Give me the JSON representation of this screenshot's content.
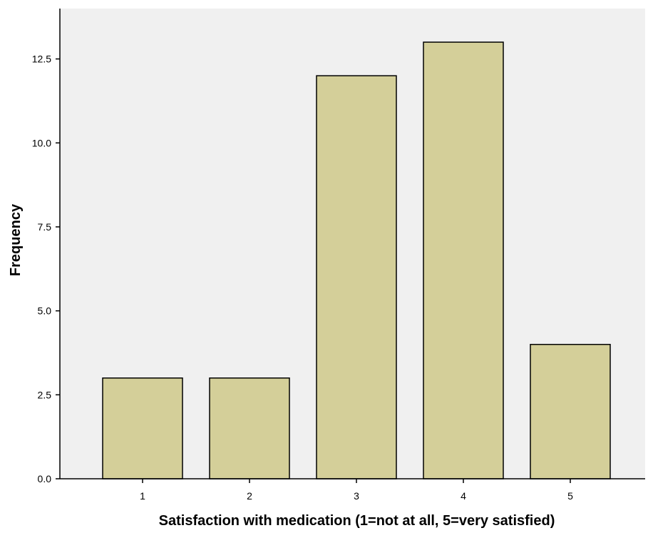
{
  "chart_data": {
    "type": "bar",
    "categories": [
      "1",
      "2",
      "3",
      "4",
      "5"
    ],
    "values": [
      3,
      3,
      12,
      13,
      4
    ],
    "title": "",
    "xlabel": "Satisfaction with medication (1=not at all, 5=very satisfied)",
    "ylabel": "Frequency",
    "ylim": [
      0,
      14
    ],
    "yticks": [
      0,
      2.5,
      5,
      7.5,
      10,
      12.5
    ],
    "ytick_labels": [
      "0.0",
      "2.5",
      "5.0",
      "7.5",
      "10.0",
      "12.5"
    ],
    "grid": false,
    "legend": "none",
    "colors": {
      "bar_fill": "#d4cf99",
      "bar_stroke": "#000000",
      "plot_background": "#f0f0f0",
      "axis": "#000000"
    }
  }
}
